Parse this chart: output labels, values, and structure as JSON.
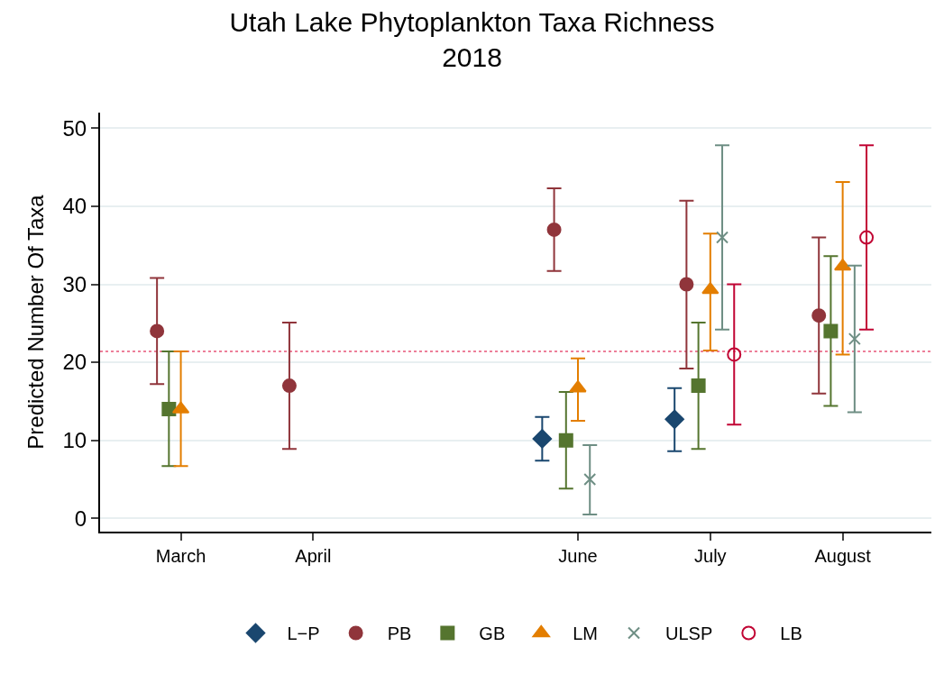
{
  "chart_data": {
    "type": "scatter",
    "title": "Utah Lake Phytoplankton Taxa Richness\n2018",
    "ylabel": "Predicted Number Of Taxa",
    "categories": [
      "March",
      "April",
      null,
      "June",
      "July",
      "August"
    ],
    "ylim": [
      -1.7,
      52
    ],
    "yticks": [
      0,
      10,
      20,
      30,
      40,
      50
    ],
    "grid": "y",
    "legend": "bottom",
    "ref_lines": [
      {
        "axis": "y",
        "value": 21.4,
        "color": "#e8567a",
        "line_style": "dotted"
      }
    ],
    "series": [
      {
        "name": "L−P",
        "color": "#1a476f",
        "marker": "diamond",
        "values": [
          null,
          null,
          null,
          10.2,
          12.7,
          null
        ],
        "errors": [
          null,
          null,
          null,
          [
            7.4,
            13
          ],
          [
            8.6,
            16.7
          ],
          null
        ]
      },
      {
        "name": "PB",
        "color": "#90353b",
        "marker": "circle",
        "values": [
          24,
          17,
          null,
          37,
          30,
          26
        ],
        "errors": [
          [
            17.2,
            30.8
          ],
          [
            8.9,
            25.1
          ],
          null,
          [
            31.7,
            42.3
          ],
          [
            19.2,
            40.7
          ],
          [
            16,
            36
          ]
        ]
      },
      {
        "name": "GB",
        "color": "#55752f",
        "marker": "square",
        "values": [
          14,
          null,
          null,
          10,
          17,
          24
        ],
        "errors": [
          [
            6.7,
            21.4
          ],
          null,
          null,
          [
            3.8,
            16.2
          ],
          [
            8.9,
            25.1
          ],
          [
            14.4,
            33.6
          ]
        ]
      },
      {
        "name": "LM",
        "color": "#e37e00",
        "marker": "triangle",
        "values": [
          14,
          null,
          null,
          16.7,
          29.3,
          32.3
        ],
        "errors": [
          [
            6.7,
            21.4
          ],
          null,
          null,
          [
            12.5,
            20.5
          ],
          [
            21.5,
            36.5
          ],
          [
            21,
            43.1
          ]
        ]
      },
      {
        "name": "ULSP",
        "color": "#6e8e84",
        "marker": "cross",
        "values": [
          null,
          null,
          null,
          5,
          36,
          23
        ],
        "errors": [
          null,
          null,
          null,
          [
            0.5,
            9.4
          ],
          [
            24.2,
            47.8
          ],
          [
            13.6,
            32.4
          ]
        ]
      },
      {
        "name": "LB",
        "color": "#c10534",
        "marker": "circle",
        "values": [
          null,
          null,
          null,
          null,
          21,
          36
        ],
        "errors": [
          null,
          null,
          null,
          null,
          [
            12,
            30
          ],
          [
            24.2,
            47.8
          ]
        ]
      }
    ]
  }
}
